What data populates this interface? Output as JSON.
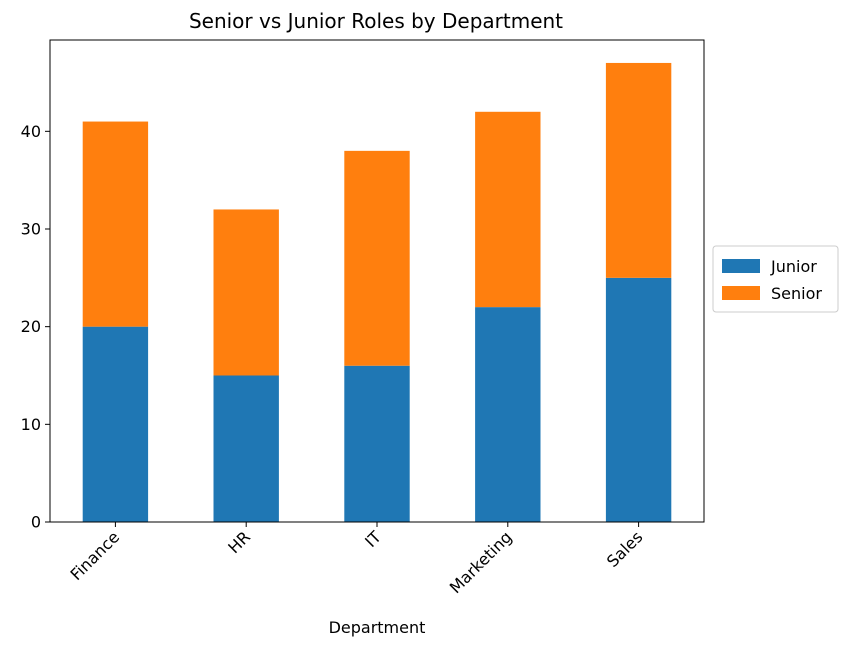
{
  "chart_data": {
    "type": "bar",
    "stacked": true,
    "title": "Senior vs Junior Roles by Department",
    "xlabel": "Department",
    "ylabel": "",
    "categories": [
      "Finance",
      "HR",
      "IT",
      "Marketing",
      "Sales"
    ],
    "series": [
      {
        "name": "Junior",
        "values": [
          20,
          15,
          16,
          22,
          25
        ],
        "color": "#1f77b4"
      },
      {
        "name": "Senior",
        "values": [
          21,
          17,
          22,
          20,
          22
        ],
        "color": "#ff7f0e"
      }
    ],
    "ylim": [
      0,
      49.35
    ],
    "yticks": [
      0,
      10,
      20,
      30,
      40
    ],
    "grid": false,
    "legend_position": "right-center"
  }
}
